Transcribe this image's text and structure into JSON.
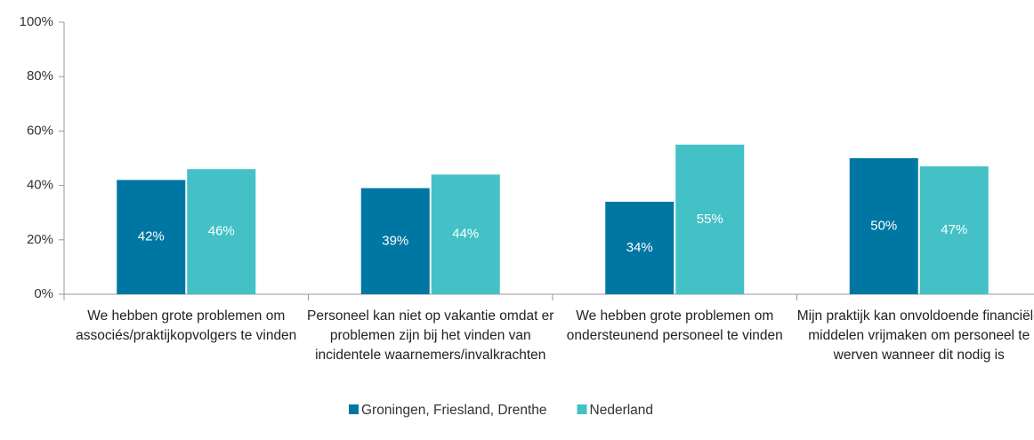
{
  "chart_data": {
    "type": "bar",
    "categories": [
      "We hebben grote problemen om associés/praktijkopvolgers te vinden",
      "Personeel kan niet op vakantie omdat er problemen zijn bij het vinden van incidentele waarnemers/invalkrachten",
      "We hebben grote problemen om ondersteunend personeel te vinden",
      "Mijn praktijk kan onvoldoende financiële middelen vrijmaken om personeel te werven wanneer dit nodig is"
    ],
    "series": [
      {
        "name": "Groningen, Friesland, Drenthe",
        "color": "#0076a3",
        "values": [
          42,
          39,
          34,
          50
        ],
        "value_labels": [
          "42%",
          "39%",
          "34%",
          "50%"
        ]
      },
      {
        "name": "Nederland",
        "color": "#43c1c6",
        "values": [
          46,
          44,
          55,
          47
        ],
        "value_labels": [
          "46%",
          "44%",
          "55%",
          "47%"
        ]
      }
    ],
    "ylim": [
      0,
      100
    ],
    "yticks": [
      {
        "value": 0,
        "label": "0%"
      },
      {
        "value": 20,
        "label": "20%"
      },
      {
        "value": 40,
        "label": "40%"
      },
      {
        "value": 60,
        "label": "60%"
      },
      {
        "value": 80,
        "label": "80%"
      },
      {
        "value": 100,
        "label": "100%"
      }
    ],
    "grid": false,
    "legend": "bottom"
  }
}
